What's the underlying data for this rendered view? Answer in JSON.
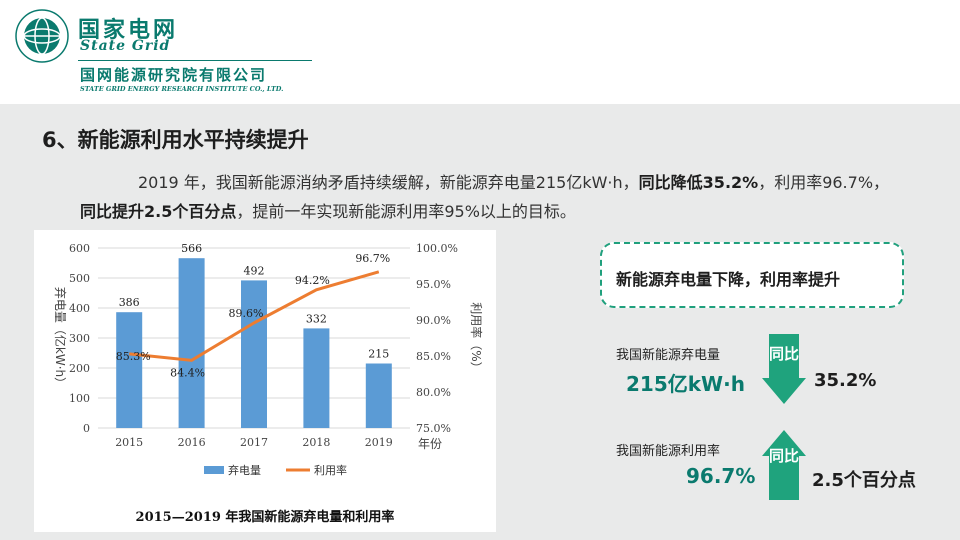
{
  "header": {
    "brand_cn": "国家电网",
    "brand_en": "State Grid",
    "institute_cn": "国网能源研究院有限公司",
    "institute_en": "STATE GRID ENERGY RESEARCH INSTITUTE CO., LTD.",
    "brand_color": "#0a7a6e"
  },
  "slide": {
    "title": "6、新能源利用水平持续提升",
    "para_part1": "2019 年，我国新能源消纳矛盾持续缓解，新能源弃电量215亿kW·h，",
    "para_bold1": "同比降低35.2%",
    "para_part2": "，利用率96.7%，",
    "para_bold2": "同比提升2.5个百分点",
    "para_part3": "，提前一年实现新能源利用率95%以上的目标。"
  },
  "chart_data": {
    "type": "bar+line",
    "title": "2015—2019 年我国新能源弃电量和利用率",
    "categories": [
      "2015",
      "2016",
      "2017",
      "2018",
      "2019"
    ],
    "xlabel": "年份",
    "series": [
      {
        "name": "弃电量",
        "type": "bar",
        "axis": "left",
        "values": [
          386,
          566,
          492,
          332,
          215
        ],
        "labels": [
          "386",
          "566",
          "492",
          "332",
          "215"
        ],
        "color": "#5b9bd5"
      },
      {
        "name": "利用率",
        "type": "line",
        "axis": "right",
        "values": [
          85.3,
          84.4,
          89.6,
          94.2,
          96.7
        ],
        "labels": [
          "85.3%",
          "84.4%",
          "89.6%",
          "94.2%",
          "96.7%"
        ],
        "color": "#ed7d31"
      }
    ],
    "ylabel_left": "弃电量（亿kW·h）",
    "ylim_left": [
      0,
      600
    ],
    "yticks_left": [
      "0",
      "100",
      "200",
      "300",
      "400",
      "500",
      "600"
    ],
    "ylabel_right": "利用率（%）",
    "ylim_right": [
      75,
      100
    ],
    "yticks_right": [
      "75.0%",
      "80.0%",
      "85.0%",
      "90.0%",
      "95.0%",
      "100.0%"
    ],
    "grid": "horizontal",
    "legend": "bottom"
  },
  "callout": {
    "title": "新能源弃电量下降，利用率提升"
  },
  "stat1": {
    "label": "我国新能源弃电量",
    "value": "215亿kW·h",
    "arrow_text": "同比",
    "change": "35.2%"
  },
  "stat2": {
    "label": "我国新能源利用率",
    "value": "96.7%",
    "arrow_text": "同比",
    "change": "2.5个百分点"
  },
  "colors": {
    "accent_green": "#20a07d",
    "arrow_green": "#1fa37d",
    "content_bg": "#e9eaea"
  }
}
